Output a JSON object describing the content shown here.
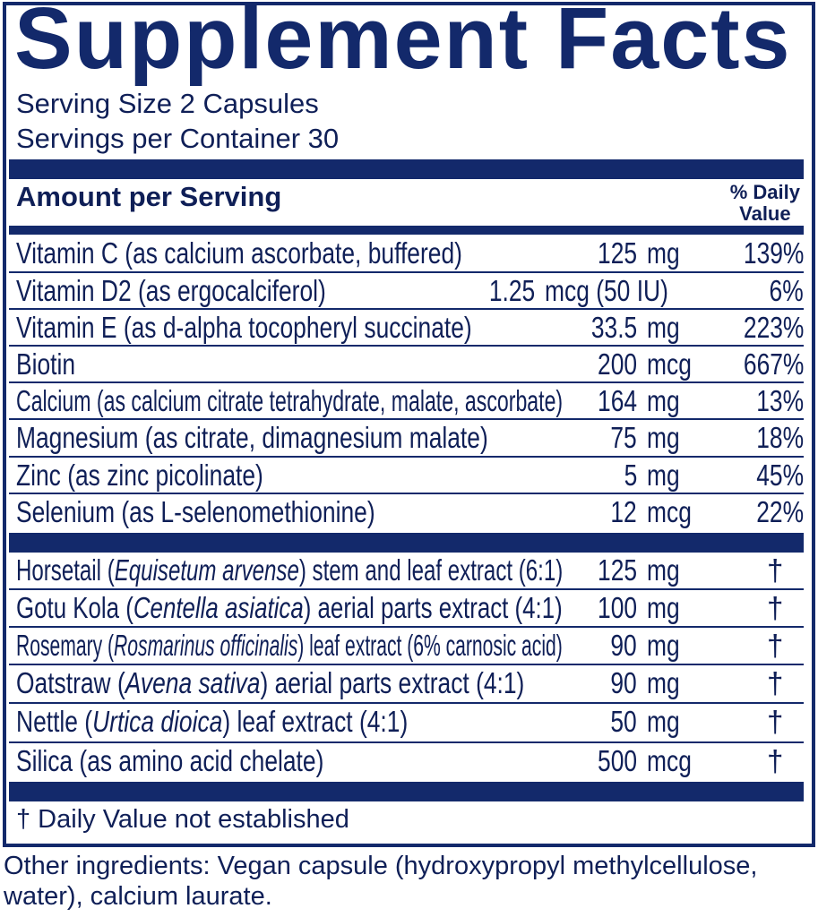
{
  "title": "Supplement Facts",
  "serving_size": "Serving Size 2 Capsules",
  "servings_per_container": "Servings per Container 30",
  "header": {
    "amount": "Amount per Serving",
    "dv_line1": "% Daily",
    "dv_line2": "Value"
  },
  "nutrients": [
    {
      "name": "Vitamin C (as calcium ascorbate, buffered)",
      "amount": "125",
      "unit": "mg",
      "dv": "139%"
    },
    {
      "name": "Vitamin D2 (as ergocalciferol)",
      "amount": "1.25",
      "unit": "mcg (50 IU)",
      "dv": "6%"
    },
    {
      "name": "Vitamin E (as d-alpha tocopheryl succinate)",
      "amount": "33.5",
      "unit": "mg",
      "dv": "223%"
    },
    {
      "name": "Biotin",
      "amount": "200",
      "unit": "mcg",
      "dv": "667%"
    },
    {
      "name": "Calcium (as calcium citrate tetrahydrate, malate, ascorbate)",
      "amount": "164",
      "unit": "mg",
      "dv": "13%"
    },
    {
      "name": "Magnesium (as citrate, dimagnesium malate)",
      "amount": "75",
      "unit": "mg",
      "dv": "18%"
    },
    {
      "name": "Zinc (as zinc picolinate)",
      "amount": "5",
      "unit": "mg",
      "dv": "45%"
    },
    {
      "name": "Selenium (as L-selenomethionine)",
      "amount": "12",
      "unit": "mcg",
      "dv": "22%"
    }
  ],
  "botanicals": [
    {
      "pre": "Horsetail (",
      "italic": "Equisetum arvense",
      "post": ") stem and leaf extract (6:1)",
      "amount": "125",
      "unit": "mg",
      "dv": "†"
    },
    {
      "pre": "Gotu Kola (",
      "italic": "Centella asiatica",
      "post": ") aerial parts extract (4:1)",
      "amount": "100",
      "unit": "mg",
      "dv": "†"
    },
    {
      "pre": "Rosemary (",
      "italic": "Rosmarinus officinalis",
      "post": ") leaf extract (6% carnosic acid)",
      "amount": "90",
      "unit": "mg",
      "dv": "†"
    },
    {
      "pre": "Oatstraw (",
      "italic": "Avena sativa",
      "post": ") aerial parts extract (4:1)",
      "amount": "90",
      "unit": "mg",
      "dv": "†"
    },
    {
      "pre": "Nettle (",
      "italic": "Urtica dioica",
      "post": ") leaf extract (4:1)",
      "amount": "50",
      "unit": "mg",
      "dv": "†"
    },
    {
      "pre": "Silica (as amino acid chelate)",
      "italic": "",
      "post": "",
      "amount": "500",
      "unit": "mcg",
      "dv": "†"
    }
  ],
  "footnote": "† Daily Value not established",
  "other_ingredients": "Other ingredients: Vegan capsule (hydroxypropyl methylcellulose, water), calcium laurate.",
  "colors": {
    "navy": "#13296b",
    "text": "#0f1f57"
  }
}
